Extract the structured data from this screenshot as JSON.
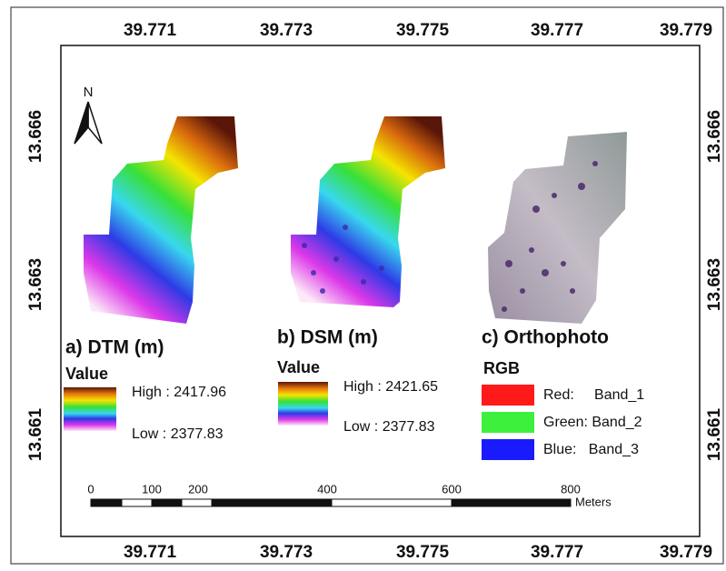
{
  "axes": {
    "top": [
      "39.771",
      "39.773",
      "39.775",
      "39.777",
      "39.779"
    ],
    "bottom": [
      "39.771",
      "39.773",
      "39.775",
      "39.777",
      "39.779"
    ],
    "left": [
      "13.666",
      "13.663",
      "13.661"
    ],
    "right": [
      "13.666",
      "13.663",
      "13.661"
    ]
  },
  "north_arrow": "N",
  "panels": [
    {
      "title": "a) DTM (m)",
      "legend_title": "Value",
      "high": "High : 2417.96",
      "low": "Low : 2377.83"
    },
    {
      "title": "b) DSM (m)",
      "legend_title": "Value",
      "high": "High : 2421.65",
      "low": "Low : 2377.83"
    },
    {
      "title": "c) Orthophoto",
      "legend_title": "RGB",
      "items": [
        "Red:     Band_1",
        "Green: Band_2",
        "Blue:   Band_3"
      ]
    }
  ],
  "scale_bar": {
    "labels": [
      "0",
      "100",
      "200",
      "400",
      "600",
      "800"
    ],
    "unit": "Meters"
  }
}
